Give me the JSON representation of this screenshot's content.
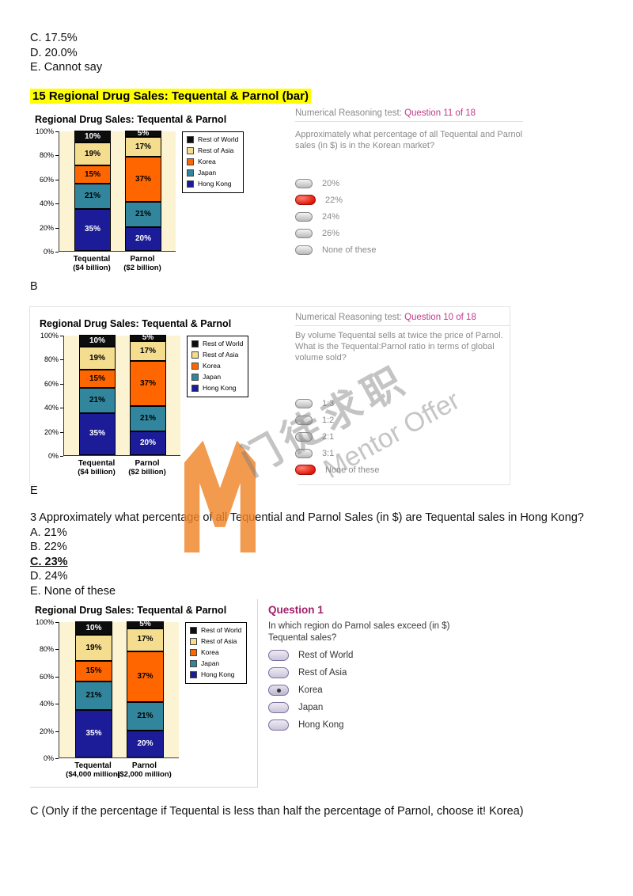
{
  "colors": {
    "highlight": "#ffff00",
    "question_accent": "#c23a8a",
    "selected_radio_red": "#e01408",
    "watermark_orange": "#f08428"
  },
  "top_answer_options": [
    "C. 17.5%",
    "D. 20.0%",
    "E. Cannot say"
  ],
  "section_heading": "15 Regional Drug Sales: Tequental & Parnol (bar)",
  "answers_between": {
    "first": "B",
    "second": "E"
  },
  "chart_data": {
    "type": "bar",
    "stacked": true,
    "title": "Regional Drug Sales: Tequental & Parnol",
    "categories": [
      "Tequental",
      "Parnol"
    ],
    "series": [
      {
        "name": "Hong Kong",
        "values": [
          35,
          20
        ],
        "color": "#1c1c99",
        "label_color": "#ffffff"
      },
      {
        "name": "Japan",
        "values": [
          21,
          21
        ],
        "color": "#31859c",
        "label_color": "#000000"
      },
      {
        "name": "Korea",
        "values": [
          15,
          37
        ],
        "color": "#ff6600",
        "label_color": "#000000"
      },
      {
        "name": "Rest of Asia",
        "values": [
          19,
          17
        ],
        "color": "#f5dd90",
        "label_color": "#000000"
      },
      {
        "name": "Rest of World",
        "values": [
          10,
          5
        ],
        "color": "#0d0d0d",
        "label_color": "#ffffff"
      }
    ],
    "legend_order_top_to_bottom": [
      "Rest of World",
      "Rest of Asia",
      "Korea",
      "Japan",
      "Hong Kong"
    ],
    "y_ticks": [
      "0%",
      "20%",
      "40%",
      "60%",
      "80%",
      "100%"
    ],
    "ylim": [
      0,
      100
    ],
    "grid": false,
    "legend_position": "right"
  },
  "charts": [
    {
      "sublabels": [
        "($4 billion)",
        "($2 billion)"
      ]
    },
    {
      "sublabels": [
        "($4 billion)",
        "($2 billion)"
      ]
    },
    {
      "sublabels": [
        "($4,000 million)",
        "($2,000 million)"
      ]
    }
  ],
  "question_panels": [
    {
      "header_prefix": "Numerical Reasoning test: ",
      "header_highlight": "Question 11 of 18",
      "question_text": "Approximately what percentage of all Tequental and Parnol sales (in $) is in the Korean market?",
      "options": [
        {
          "label": "20%",
          "selected": false
        },
        {
          "label": "22%",
          "selected": true
        },
        {
          "label": "24%",
          "selected": false
        },
        {
          "label": "26%",
          "selected": false
        },
        {
          "label": "None of these",
          "selected": false
        }
      ]
    },
    {
      "header_prefix": "Numerical Reasoning test: ",
      "header_highlight": "Question 10 of 18",
      "question_text": "By volume Tequental sells at twice the price of Parnol.  What is the Tequental:Parnol ratio in terms of global volume sold?",
      "options": [
        {
          "label": "1:3",
          "selected": false
        },
        {
          "label": "1:2",
          "selected": false
        },
        {
          "label": "2:1",
          "selected": false
        },
        {
          "label": "3:1",
          "selected": false
        },
        {
          "label": "None of these",
          "selected": true
        }
      ]
    },
    {
      "header_highlight": "Question 1",
      "question_text": "In which region do Parnol sales exceed (in $) Tequental sales?",
      "options": [
        {
          "label": "Rest of World",
          "selected": false
        },
        {
          "label": "Rest of Asia",
          "selected": false
        },
        {
          "label": "Korea",
          "selected": true
        },
        {
          "label": "Japan",
          "selected": false
        },
        {
          "label": "Hong Kong",
          "selected": false
        }
      ]
    }
  ],
  "question3": {
    "text": "3 Approximately what percentage of all Tequential and Parnol Sales (in $) are Tequental sales in Hong Kong?",
    "options": [
      {
        "label": "A. 21%",
        "emphasis": false
      },
      {
        "label": "B. 22%",
        "emphasis": false
      },
      {
        "label": "C. 23%",
        "emphasis": true
      },
      {
        "label": "D. 24%",
        "emphasis": false
      },
      {
        "label": "E. None of these",
        "emphasis": false
      }
    ]
  },
  "bottom_note": "C (Only if the percentage if Tequental is less than half the percentage of Parnol, choose it! Korea)",
  "watermark": {
    "cn": "门徒求职",
    "en": "Mentor Offer"
  }
}
